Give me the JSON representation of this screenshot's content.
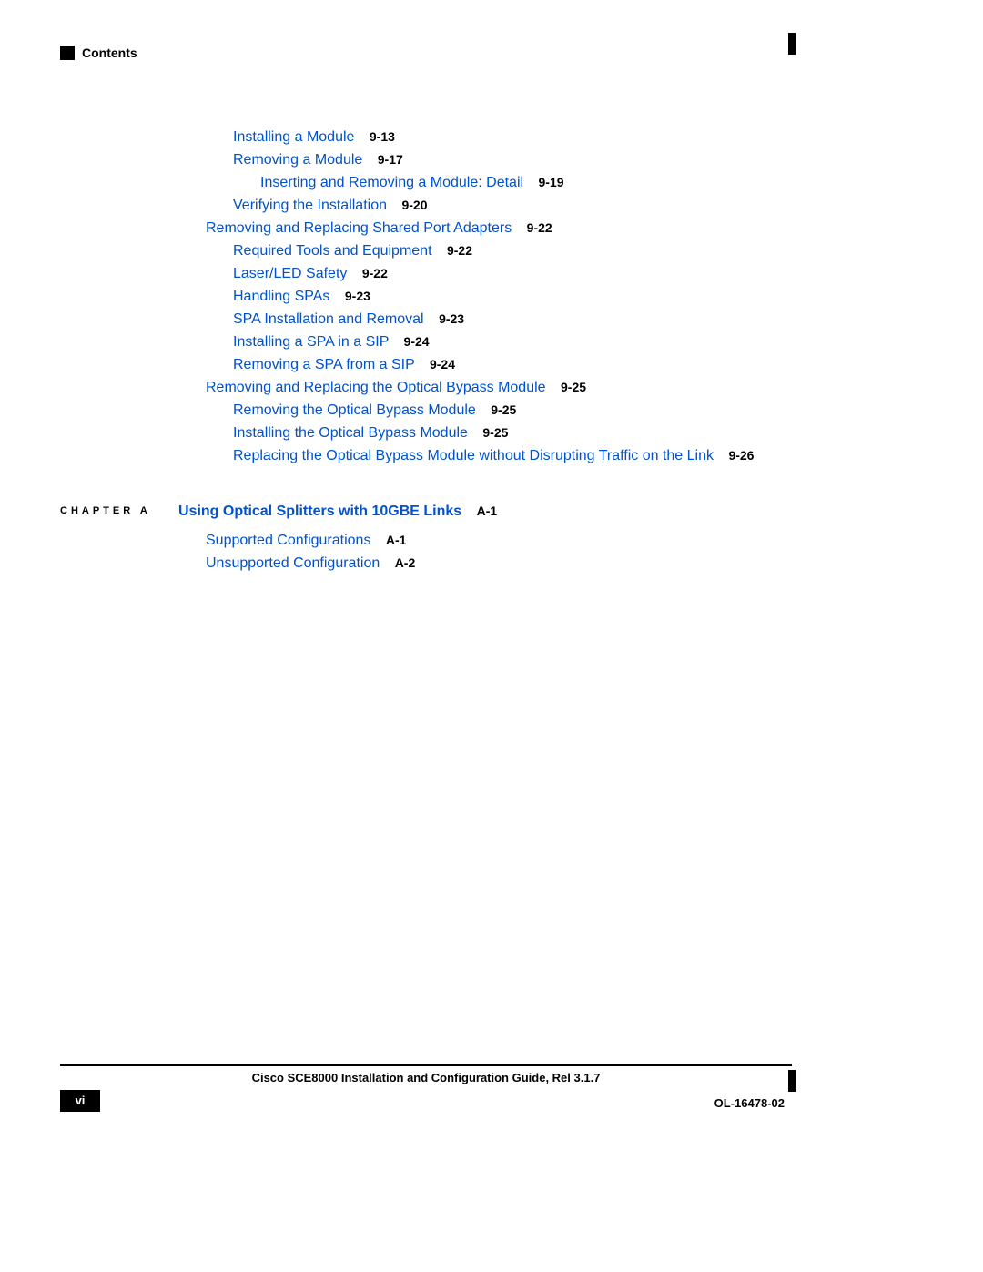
{
  "header": {
    "label": "Contents"
  },
  "toc": {
    "lines": [
      {
        "indent": "lvl2",
        "title": "Installing a Module",
        "page": "9-13"
      },
      {
        "indent": "lvl2",
        "title": "Removing a Module",
        "page": "9-17"
      },
      {
        "indent": "lvl3",
        "title": "Inserting and Removing a Module: Detail",
        "page": "9-19"
      },
      {
        "indent": "lvl2",
        "title": "Verifying the Installation",
        "page": "9-20"
      },
      {
        "indent": "lvl1",
        "title": "Removing and Replacing Shared Port Adapters",
        "page": "9-22"
      },
      {
        "indent": "lvl2",
        "title": "Required Tools and Equipment",
        "page": "9-22"
      },
      {
        "indent": "lvl2",
        "title": "Laser/LED Safety",
        "page": "9-22"
      },
      {
        "indent": "lvl2",
        "title": "Handling SPAs",
        "page": "9-23"
      },
      {
        "indent": "lvl2",
        "title": "SPA Installation and Removal",
        "page": "9-23"
      },
      {
        "indent": "lvl2",
        "title": "Installing a SPA in a SIP",
        "page": "9-24"
      },
      {
        "indent": "lvl2",
        "title": "Removing a SPA from a SIP",
        "page": "9-24"
      },
      {
        "indent": "lvl1",
        "title": "Removing and Replacing the Optical Bypass Module",
        "page": "9-25"
      },
      {
        "indent": "lvl2",
        "title": "Removing the Optical Bypass Module",
        "page": "9-25"
      },
      {
        "indent": "lvl2",
        "title": "Installing the Optical Bypass Module",
        "page": "9-25"
      },
      {
        "indent": "lvl2",
        "title": "Replacing the Optical Bypass Module without Disrupting Traffic on the Link",
        "page": "9-26"
      }
    ]
  },
  "chapter": {
    "label": "CHAPTER A",
    "title": "Using Optical Splitters with 10GBE Links",
    "page": "A-1",
    "sub": [
      {
        "title": "Supported Configurations",
        "page": "A-1"
      },
      {
        "title": "Unsupported Configuration",
        "page": "A-2"
      }
    ]
  },
  "footer": {
    "title": "Cisco SCE8000 Installation and Configuration Guide, Rel 3.1.7",
    "pagenum": "vi",
    "docnum": "OL-16478-02"
  },
  "colors": {
    "link": "#0052cc",
    "text": "#000000",
    "bg": "#ffffff"
  }
}
